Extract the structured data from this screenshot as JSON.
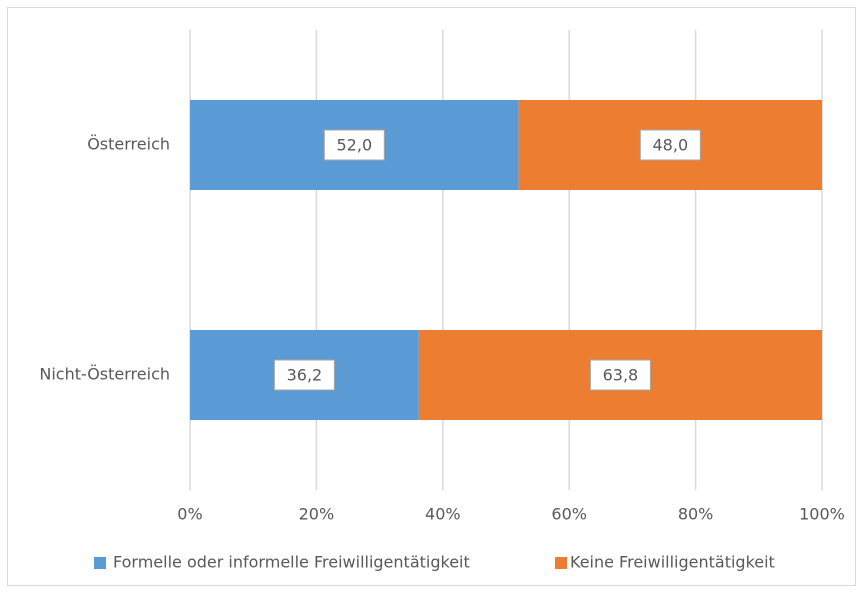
{
  "chart_data": {
    "type": "stacked_bar_horizontal",
    "categories": [
      "Österreich",
      "Nicht-Österreich"
    ],
    "series": [
      {
        "name": "Formelle oder informelle Freiwilligentätigkeit",
        "color": "#5b9bd5",
        "values": [
          52.0,
          36.2
        ],
        "value_labels": [
          "52,0",
          "36,2"
        ]
      },
      {
        "name": "Keine Freiwilligentätigkeit",
        "color": "#ed7d31",
        "values": [
          48.0,
          63.8
        ],
        "value_labels": [
          "48,0",
          "63,8"
        ]
      }
    ],
    "xlim": [
      0,
      100
    ],
    "xticks": [
      {
        "value": 0,
        "label": "0%"
      },
      {
        "value": 20,
        "label": "20%"
      },
      {
        "value": 40,
        "label": "40%"
      },
      {
        "value": 60,
        "label": "60%"
      },
      {
        "value": 80,
        "label": "80%"
      },
      {
        "value": 100,
        "label": "100%"
      }
    ],
    "grid": true,
    "legend": "bottom"
  }
}
